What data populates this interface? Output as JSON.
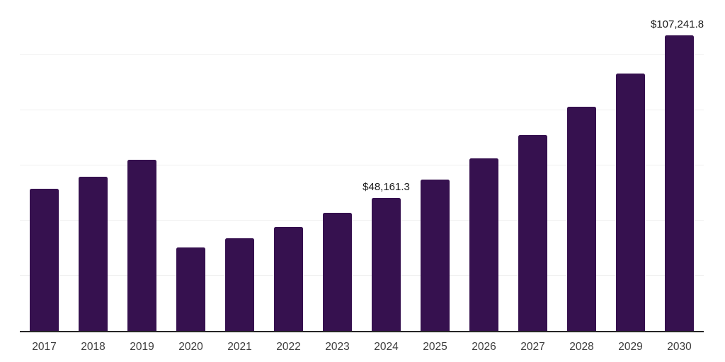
{
  "chart_data": {
    "type": "bar",
    "title": "",
    "xlabel": "",
    "ylabel": "",
    "categories": [
      "2017",
      "2018",
      "2019",
      "2020",
      "2021",
      "2022",
      "2023",
      "2024",
      "2025",
      "2026",
      "2027",
      "2028",
      "2029",
      "2030"
    ],
    "values": [
      51500,
      55900,
      62100,
      30300,
      33600,
      37700,
      42800,
      48161.3,
      54900,
      62600,
      71000,
      81300,
      93300,
      107241.8
    ],
    "data_labels": [
      {
        "category": "2024",
        "text": "$48,161.3"
      },
      {
        "category": "2030",
        "text": "$107,241.8"
      }
    ],
    "ylim": [
      0,
      120000
    ],
    "gridline_step": 20000,
    "grid": true,
    "legend": false,
    "y_tick_labels_visible": false,
    "colors": {
      "bar": "#36114F",
      "axis": "#262626",
      "gridline": "#f0f0f0",
      "x_tick_label": "#3c3c3c",
      "data_label": "#1a1a1a",
      "background": "#ffffff"
    }
  }
}
